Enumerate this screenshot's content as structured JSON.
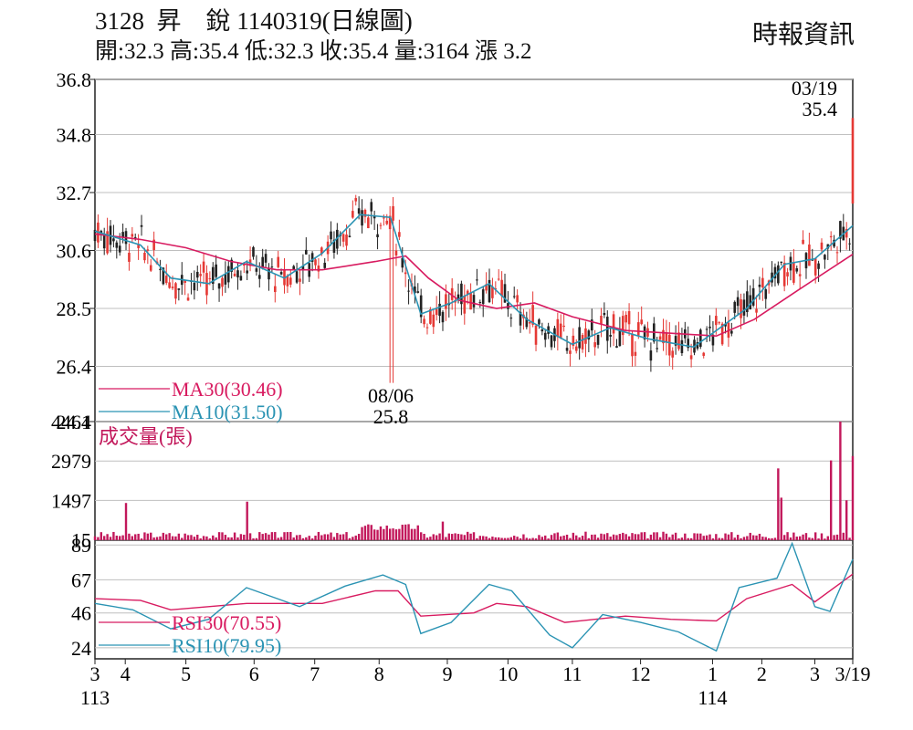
{
  "header": {
    "code": "3128",
    "name": "昇　銳",
    "date_code": "1140319(日線圖)",
    "stats_line": "開:32.3 高:35.4 低:32.3 收:35.4 量:3164 漲 3.2",
    "source": "時報資訊"
  },
  "chart_data": [
    {
      "type": "candlestick",
      "ylim": [
        24.4,
        36.8
      ],
      "ytick_labels": [
        "36.8",
        "34.8",
        "32.7",
        "30.6",
        "28.5",
        "26.4",
        "24.4"
      ],
      "yticks": [
        36.8,
        34.8,
        32.7,
        30.6,
        28.5,
        26.4,
        24.4
      ],
      "legend": [
        {
          "name": "MA30(30.46)",
          "color": "#d81b60"
        },
        {
          "name": "MA10(31.50)",
          "color": "#2a93b3"
        }
      ],
      "annotations": [
        {
          "date": "03/19",
          "value": "35.4",
          "text_top": "03/19",
          "text_bottom": "35.4"
        },
        {
          "date": "08/06",
          "value": "25.8",
          "text_top": "08/06",
          "text_bottom": "25.8"
        }
      ],
      "series": [
        {
          "name": "MA30",
          "color": "#d81b60",
          "values": [
            {
              "x": 0,
              "y": 31.2
            },
            {
              "x": 0.06,
              "y": 31.0
            },
            {
              "x": 0.12,
              "y": 30.7
            },
            {
              "x": 0.18,
              "y": 30.2
            },
            {
              "x": 0.24,
              "y": 29.9
            },
            {
              "x": 0.3,
              "y": 29.9
            },
            {
              "x": 0.37,
              "y": 30.2
            },
            {
              "x": 0.41,
              "y": 30.4
            },
            {
              "x": 0.44,
              "y": 29.6
            },
            {
              "x": 0.48,
              "y": 28.8
            },
            {
              "x": 0.53,
              "y": 28.5
            },
            {
              "x": 0.58,
              "y": 28.7
            },
            {
              "x": 0.63,
              "y": 28.2
            },
            {
              "x": 0.7,
              "y": 27.7
            },
            {
              "x": 0.76,
              "y": 27.6
            },
            {
              "x": 0.82,
              "y": 27.5
            },
            {
              "x": 0.87,
              "y": 28.1
            },
            {
              "x": 0.93,
              "y": 29.2
            },
            {
              "x": 1.0,
              "y": 30.46
            }
          ]
        },
        {
          "name": "MA10",
          "color": "#2a93b3",
          "values": [
            {
              "x": 0,
              "y": 31.3
            },
            {
              "x": 0.06,
              "y": 30.8
            },
            {
              "x": 0.1,
              "y": 29.6
            },
            {
              "x": 0.15,
              "y": 29.4
            },
            {
              "x": 0.2,
              "y": 30.2
            },
            {
              "x": 0.25,
              "y": 29.6
            },
            {
              "x": 0.3,
              "y": 30.5
            },
            {
              "x": 0.35,
              "y": 31.9
            },
            {
              "x": 0.39,
              "y": 31.8
            },
            {
              "x": 0.43,
              "y": 28.3
            },
            {
              "x": 0.47,
              "y": 28.7
            },
            {
              "x": 0.52,
              "y": 29.4
            },
            {
              "x": 0.57,
              "y": 28.1
            },
            {
              "x": 0.63,
              "y": 27.2
            },
            {
              "x": 0.68,
              "y": 27.8
            },
            {
              "x": 0.73,
              "y": 27.4
            },
            {
              "x": 0.79,
              "y": 27.1
            },
            {
              "x": 0.86,
              "y": 28.5
            },
            {
              "x": 0.91,
              "y": 30.1
            },
            {
              "x": 0.95,
              "y": 30.3
            },
            {
              "x": 1.0,
              "y": 31.5
            }
          ]
        }
      ]
    },
    {
      "type": "bar",
      "title": "成交量(張)",
      "ylim": [
        0,
        4461
      ],
      "ytick_labels": [
        "4461",
        "2979",
        "1497",
        "15"
      ],
      "yticks": [
        4461,
        2979,
        1497,
        15
      ],
      "color": "#c2185b",
      "spikes": [
        {
          "x": 0.04,
          "v": 1400
        },
        {
          "x": 0.2,
          "v": 1450
        },
        {
          "x": 0.46,
          "v": 700
        },
        {
          "x": 0.9,
          "v": 2700
        },
        {
          "x": 0.905,
          "v": 1600
        },
        {
          "x": 0.97,
          "v": 3000
        },
        {
          "x": 0.985,
          "v": 4461
        },
        {
          "x": 0.993,
          "v": 1500
        },
        {
          "x": 1.0,
          "v": 3164
        }
      ]
    },
    {
      "type": "line",
      "ylim": [
        17,
        92
      ],
      "ytick_labels": [
        "89",
        "67",
        "46",
        "24"
      ],
      "yticks": [
        89,
        67,
        46,
        24
      ],
      "legend": [
        {
          "name": "RSI30(70.55)",
          "color": "#d81b60"
        },
        {
          "name": "RSI10(79.95)",
          "color": "#2a93b3"
        }
      ],
      "series": [
        {
          "name": "RSI30",
          "color": "#d81b60",
          "values": [
            {
              "x": 0,
              "y": 55
            },
            {
              "x": 0.06,
              "y": 54
            },
            {
              "x": 0.1,
              "y": 48
            },
            {
              "x": 0.15,
              "y": 50
            },
            {
              "x": 0.2,
              "y": 52
            },
            {
              "x": 0.3,
              "y": 52
            },
            {
              "x": 0.37,
              "y": 60
            },
            {
              "x": 0.4,
              "y": 60
            },
            {
              "x": 0.43,
              "y": 44
            },
            {
              "x": 0.5,
              "y": 46
            },
            {
              "x": 0.53,
              "y": 52
            },
            {
              "x": 0.57,
              "y": 50
            },
            {
              "x": 0.62,
              "y": 40
            },
            {
              "x": 0.7,
              "y": 44
            },
            {
              "x": 0.76,
              "y": 42
            },
            {
              "x": 0.82,
              "y": 41
            },
            {
              "x": 0.86,
              "y": 55
            },
            {
              "x": 0.92,
              "y": 64
            },
            {
              "x": 0.95,
              "y": 53
            },
            {
              "x": 1.0,
              "y": 70.55
            }
          ]
        },
        {
          "name": "RSI10",
          "color": "#2a93b3",
          "values": [
            {
              "x": 0,
              "y": 52
            },
            {
              "x": 0.05,
              "y": 48
            },
            {
              "x": 0.1,
              "y": 36
            },
            {
              "x": 0.15,
              "y": 42
            },
            {
              "x": 0.2,
              "y": 62
            },
            {
              "x": 0.27,
              "y": 50
            },
            {
              "x": 0.33,
              "y": 63
            },
            {
              "x": 0.38,
              "y": 70
            },
            {
              "x": 0.41,
              "y": 64
            },
            {
              "x": 0.43,
              "y": 33
            },
            {
              "x": 0.47,
              "y": 40
            },
            {
              "x": 0.52,
              "y": 64
            },
            {
              "x": 0.55,
              "y": 60
            },
            {
              "x": 0.6,
              "y": 32
            },
            {
              "x": 0.63,
              "y": 24
            },
            {
              "x": 0.67,
              "y": 45
            },
            {
              "x": 0.72,
              "y": 40
            },
            {
              "x": 0.77,
              "y": 34
            },
            {
              "x": 0.82,
              "y": 22
            },
            {
              "x": 0.85,
              "y": 62
            },
            {
              "x": 0.9,
              "y": 68
            },
            {
              "x": 0.92,
              "y": 90
            },
            {
              "x": 0.95,
              "y": 50
            },
            {
              "x": 0.97,
              "y": 47
            },
            {
              "x": 1.0,
              "y": 79.95
            }
          ]
        }
      ]
    }
  ],
  "x_axis": {
    "month_labels": [
      {
        "label": "3",
        "x": 0.0
      },
      {
        "label": "4",
        "x": 0.04
      },
      {
        "label": "5",
        "x": 0.12
      },
      {
        "label": "6",
        "x": 0.21
      },
      {
        "label": "7",
        "x": 0.29
      },
      {
        "label": "8",
        "x": 0.375
      },
      {
        "label": "9",
        "x": 0.465
      },
      {
        "label": "10",
        "x": 0.545
      },
      {
        "label": "11",
        "x": 0.63
      },
      {
        "label": "12",
        "x": 0.72
      },
      {
        "label": "1",
        "x": 0.815
      },
      {
        "label": "2",
        "x": 0.88
      },
      {
        "label": "3",
        "x": 0.95
      },
      {
        "label": "3/19",
        "x": 1.0
      }
    ],
    "year_labels": [
      {
        "label": "113",
        "x": 0.0
      },
      {
        "label": "114",
        "x": 0.815
      }
    ]
  }
}
